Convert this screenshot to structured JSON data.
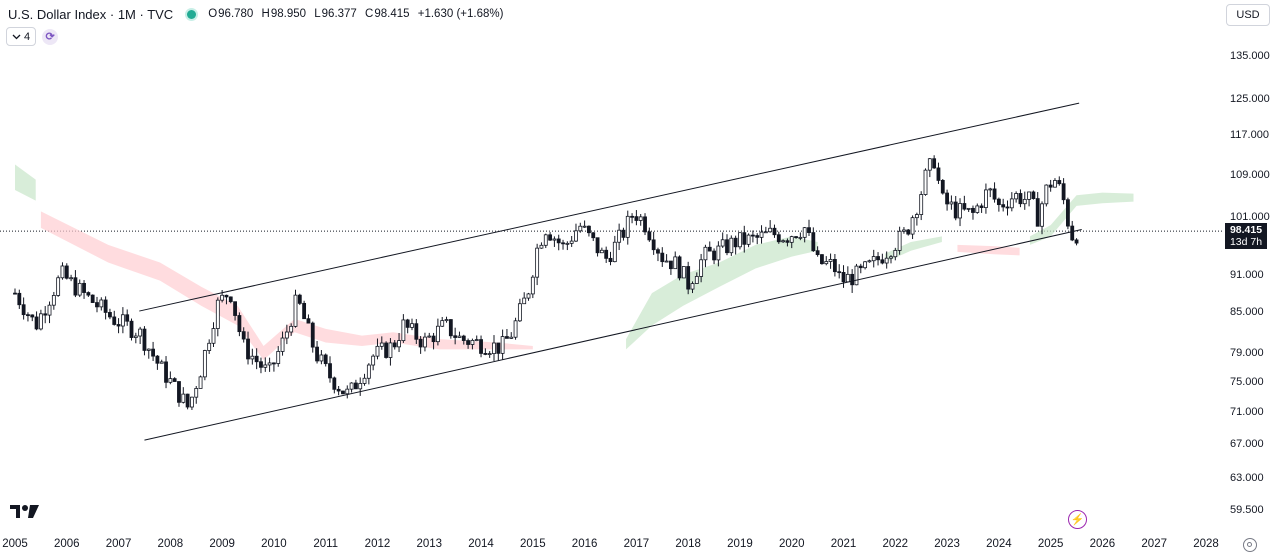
{
  "header": {
    "title": "U.S. Dollar Index · 1M · TVC",
    "ohlc": [
      {
        "key": "O",
        "value": "96.780"
      },
      {
        "key": "H",
        "value": "98.950"
      },
      {
        "key": "L",
        "value": "96.377"
      },
      {
        "key": "C",
        "value": "98.415"
      }
    ],
    "change": "+1.630 (+1.68%)"
  },
  "indicator_count": "4",
  "currency": "USD",
  "price_label": {
    "price": "98.415",
    "countdown": "13d 7h"
  },
  "colors": {
    "up": "#131722",
    "down": "#131722",
    "cloud_bull": "#c8e6c9",
    "cloud_bear": "#ffcdd2",
    "channel": "#131722",
    "live": "#22ab94",
    "accent": "#9c27b0"
  },
  "chart_data": {
    "type": "candlestick",
    "title": "U.S. Dollar Index · 1M · TVC",
    "interval": "1M",
    "y_scale": "log",
    "ylim": [
      58.5,
      139
    ],
    "xlim": [
      2005.0,
      2028.2
    ],
    "y_ticks": [
      "135.000",
      "125.000",
      "117.000",
      "109.000",
      "101.000",
      "91.000",
      "85.000",
      "79.000",
      "75.000",
      "71.000",
      "67.000",
      "63.000",
      "59.500"
    ],
    "x_ticks": [
      "2005",
      "2006",
      "2007",
      "2008",
      "2009",
      "2010",
      "2011",
      "2012",
      "2013",
      "2014",
      "2015",
      "2016",
      "2017",
      "2018",
      "2019",
      "2020",
      "2021",
      "2022",
      "2023",
      "2024",
      "2025",
      "2026",
      "2027",
      "2028"
    ],
    "close_path": [
      [
        2005.0,
        88.0
      ],
      [
        2005.4,
        83.0
      ],
      [
        2005.9,
        91.0
      ],
      [
        2006.3,
        88.0
      ],
      [
        2006.9,
        84.0
      ],
      [
        2007.4,
        82.0
      ],
      [
        2007.8,
        77.0
      ],
      [
        2008.2,
        73.0
      ],
      [
        2008.35,
        71.5
      ],
      [
        2008.6,
        77.0
      ],
      [
        2008.9,
        86.0
      ],
      [
        2009.15,
        88.5
      ],
      [
        2009.4,
        80.0
      ],
      [
        2009.9,
        76.0
      ],
      [
        2010.2,
        81.0
      ],
      [
        2010.45,
        87.0
      ],
      [
        2010.8,
        79.0
      ],
      [
        2011.05,
        76.0
      ],
      [
        2011.3,
        74.0
      ],
      [
        2011.45,
        73.2
      ],
      [
        2011.9,
        78.5
      ],
      [
        2012.3,
        80.0
      ],
      [
        2012.5,
        83.0
      ],
      [
        2012.9,
        80.5
      ],
      [
        2013.3,
        83.0
      ],
      [
        2013.6,
        81.0
      ],
      [
        2013.9,
        80.5
      ],
      [
        2014.2,
        80.0
      ],
      [
        2014.4,
        79.8
      ],
      [
        2014.6,
        82.0
      ],
      [
        2014.9,
        88.0
      ],
      [
        2015.1,
        96.0
      ],
      [
        2015.25,
        99.0
      ],
      [
        2015.6,
        95.5
      ],
      [
        2015.9,
        99.5
      ],
      [
        2016.2,
        96.0
      ],
      [
        2016.4,
        93.5
      ],
      [
        2016.6,
        96.0
      ],
      [
        2016.8,
        99.0
      ],
      [
        2016.95,
        102.0
      ],
      [
        2017.15,
        100.0
      ],
      [
        2017.5,
        94.0
      ],
      [
        2017.8,
        92.5
      ],
      [
        2018.0,
        89.5
      ],
      [
        2018.3,
        94.0
      ],
      [
        2018.6,
        95.0
      ],
      [
        2018.9,
        96.5
      ],
      [
        2019.3,
        97.0
      ],
      [
        2019.6,
        98.0
      ],
      [
        2019.9,
        97.5
      ],
      [
        2020.1,
        98.5
      ],
      [
        2020.25,
        99.0
      ],
      [
        2020.5,
        93.0
      ],
      [
        2020.8,
        92.5
      ],
      [
        2020.95,
        90.0
      ],
      [
        2021.3,
        91.0
      ],
      [
        2021.6,
        93.0
      ],
      [
        2021.9,
        95.5
      ],
      [
        2022.2,
        98.0
      ],
      [
        2022.45,
        104.0
      ],
      [
        2022.6,
        109.0
      ],
      [
        2022.75,
        112.0
      ],
      [
        2022.9,
        104.0
      ],
      [
        2023.2,
        102.0
      ],
      [
        2023.5,
        101.5
      ],
      [
        2023.8,
        106.0
      ],
      [
        2024.0,
        103.0
      ],
      [
        2024.3,
        105.0
      ],
      [
        2024.6,
        104.0
      ],
      [
        2024.75,
        101.0
      ],
      [
        2024.95,
        107.0
      ],
      [
        2025.1,
        108.0
      ],
      [
        2025.25,
        104.0
      ],
      [
        2025.35,
        99.5
      ],
      [
        2025.45,
        96.8
      ],
      [
        2025.52,
        98.4
      ]
    ],
    "cloud": [
      {
        "type": "bear",
        "upper": [
          [
            2005.5,
            102
          ],
          [
            2006.8,
            96
          ],
          [
            2007.8,
            93
          ],
          [
            2008.6,
            89
          ],
          [
            2009.3,
            86
          ],
          [
            2009.8,
            80
          ],
          [
            2010.4,
            84
          ],
          [
            2011.0,
            82.5
          ],
          [
            2011.7,
            81.5
          ],
          [
            2012.3,
            82
          ],
          [
            2013.2,
            81
          ],
          [
            2014.3,
            80.5
          ],
          [
            2015.0,
            80
          ]
        ],
        "lower": [
          [
            2005.5,
            99
          ],
          [
            2006.8,
            93
          ],
          [
            2007.8,
            90
          ],
          [
            2008.6,
            86
          ],
          [
            2009.3,
            83
          ],
          [
            2009.8,
            78
          ],
          [
            2010.4,
            82
          ],
          [
            2011.0,
            80.5
          ],
          [
            2011.7,
            80
          ],
          [
            2012.3,
            80.5
          ],
          [
            2013.2,
            79.5
          ],
          [
            2014.3,
            79.5
          ],
          [
            2015.0,
            79.5
          ]
        ]
      },
      {
        "type": "bull",
        "upper": [
          [
            2016.8,
            81
          ],
          [
            2017.3,
            88
          ],
          [
            2017.9,
            91
          ],
          [
            2018.6,
            93
          ],
          [
            2019.3,
            96
          ],
          [
            2020.0,
            97.5
          ],
          [
            2020.5,
            96.5
          ]
        ],
        "lower": [
          [
            2016.8,
            79.5
          ],
          [
            2017.3,
            83
          ],
          [
            2017.9,
            86
          ],
          [
            2018.6,
            89
          ],
          [
            2019.3,
            92
          ],
          [
            2020.0,
            94
          ],
          [
            2020.5,
            95
          ]
        ]
      },
      {
        "type": "bull",
        "upper": [
          [
            2021.8,
            94.5
          ],
          [
            2022.3,
            96.5
          ],
          [
            2022.9,
            97.5
          ]
        ],
        "lower": [
          [
            2021.8,
            93.0
          ],
          [
            2022.3,
            95.0
          ],
          [
            2022.9,
            96.5
          ]
        ]
      },
      {
        "type": "bear",
        "upper": [
          [
            2023.2,
            96.0
          ],
          [
            2023.9,
            95.8
          ],
          [
            2024.4,
            95.5
          ]
        ],
        "lower": [
          [
            2023.2,
            94.8
          ],
          [
            2023.9,
            94.4
          ],
          [
            2024.4,
            94.2
          ]
        ]
      },
      {
        "type": "bull",
        "upper": [
          [
            2024.6,
            97.5
          ],
          [
            2025.0,
            99.5
          ],
          [
            2025.5,
            105
          ],
          [
            2026.0,
            105.5
          ],
          [
            2026.6,
            105.3
          ]
        ],
        "lower": [
          [
            2024.6,
            96.0
          ],
          [
            2025.0,
            97.5
          ],
          [
            2025.5,
            103
          ],
          [
            2026.0,
            103.5
          ],
          [
            2026.6,
            103.8
          ]
        ]
      },
      {
        "type": "bull",
        "upper": [
          [
            2005.0,
            111
          ],
          [
            2005.4,
            108
          ]
        ],
        "lower": [
          [
            2005.0,
            106
          ],
          [
            2005.4,
            104
          ]
        ]
      }
    ],
    "channel_lines": [
      {
        "from": [
          2007.4,
          85.2
        ],
        "to": [
          2025.55,
          124.0
        ]
      },
      {
        "from": [
          2007.5,
          67.5
        ],
        "to": [
          2025.6,
          98.7
        ]
      }
    ],
    "last_price": 98.415
  }
}
